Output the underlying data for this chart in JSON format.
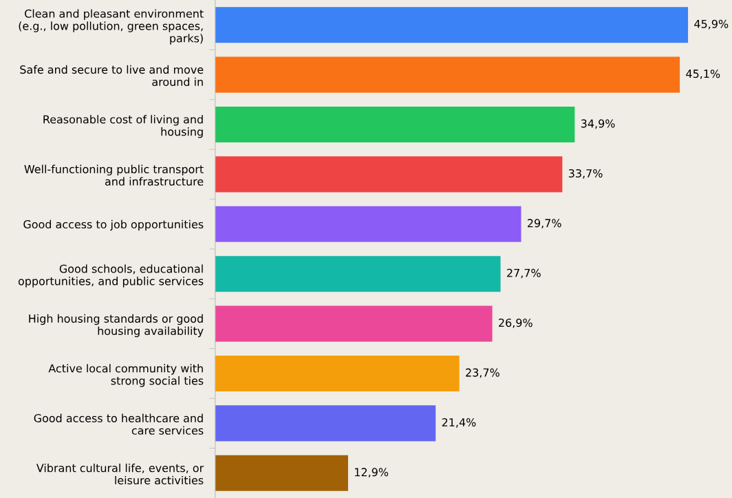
{
  "chart_data": {
    "type": "bar",
    "orientation": "horizontal",
    "categories": [
      "Clean and pleasant environment\n(e.g., low pollution, green spaces,\nparks)",
      "Safe and secure to live and move\naround in",
      "Reasonable cost of living and\nhousing",
      "Well-functioning public transport\nand infrastructure",
      "Good access to job opportunities",
      "Good schools, educational\nopportunities, and public services",
      "High housing standards or good\nhousing availability",
      "Active local community with\nstrong social ties",
      "Good access to healthcare and\ncare services",
      "Vibrant cultural life, events, or\nleisure activities"
    ],
    "values": [
      45.9,
      45.1,
      34.9,
      33.7,
      29.7,
      27.7,
      26.9,
      23.7,
      21.4,
      12.9
    ],
    "value_labels": [
      "45,9%",
      "45,1%",
      "34,9%",
      "33,7%",
      "29,7%",
      "27,7%",
      "26,9%",
      "23,7%",
      "21,4%",
      "12,9%"
    ],
    "colors": [
      "#3b82f6",
      "#f97316",
      "#22c55e",
      "#ef4444",
      "#8b5cf6",
      "#14b8a6",
      "#ec4899",
      "#f59e0b",
      "#6366f1",
      "#a16207"
    ],
    "grid": false,
    "legend": false
  }
}
